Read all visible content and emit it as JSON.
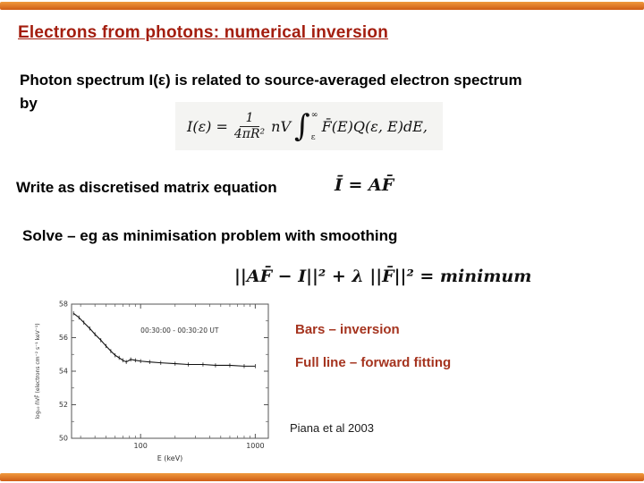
{
  "slide": {
    "title": "Electrons from photons: numerical inversion",
    "intro_line1": "Photon spectrum I(ε) is related to source-averaged electron spectrum",
    "intro_line2": "by",
    "matrix_line": "Write as discretised matrix equation",
    "solve_line": "Solve – eg as minimisation problem with smoothing",
    "legend_bars": "Bars – inversion",
    "legend_line": "Full line – forward fitting",
    "citation": "Piana et al 2003"
  },
  "equations": {
    "photon_integral": {
      "lhs": "I(ε) =",
      "frac_num": "1",
      "frac_den": "4πR²",
      "coeff": "nV",
      "int_sign": "∫",
      "upper_limit": "∞",
      "lower_limit": "ε",
      "integrand": "F̄(E)Q(ε, E)dE,"
    },
    "matrix": "Ī = AF̄",
    "minimisation": "||AF̄ − I||² + λ ||F̄||² = minimum"
  },
  "chart_data": {
    "type": "line",
    "title": "",
    "x_scale": "log",
    "xlabel": "E (keV)",
    "ylabel": "log₁₀ n̄VF̄ (electrons cm⁻² s⁻¹ keV⁻¹)",
    "xlim": [
      25,
      1300
    ],
    "ylim": [
      50,
      58
    ],
    "xticks": [
      100,
      1000
    ],
    "yticks": [
      50,
      52,
      54,
      56,
      58
    ],
    "grid": false,
    "annotation": {
      "text": "00:30:00 - 00:30:20 UT",
      "x": 100,
      "y": 56.3
    },
    "x": [
      26,
      29,
      32,
      36,
      40,
      45,
      50,
      55,
      60,
      65,
      70,
      75,
      82,
      90,
      100,
      120,
      150,
      200,
      260,
      350,
      450,
      600,
      800,
      1000
    ],
    "y": [
      57.45,
      57.2,
      56.9,
      56.55,
      56.2,
      55.85,
      55.5,
      55.2,
      54.95,
      54.8,
      54.65,
      54.55,
      54.7,
      54.65,
      54.6,
      54.55,
      54.5,
      54.45,
      54.4,
      54.4,
      54.35,
      54.35,
      54.3,
      54.3
    ],
    "yerr": 0.12,
    "series": [
      {
        "name": "inversion",
        "render": "error-bars"
      },
      {
        "name": "forward fitting",
        "render": "line"
      }
    ]
  },
  "colors": {
    "accent-bar-light": "#f09a3e",
    "accent-bar-dark": "#cf5d16",
    "title-color": "#a31d0e",
    "highlight-color": "#a5341f",
    "body-color": "#000000"
  }
}
